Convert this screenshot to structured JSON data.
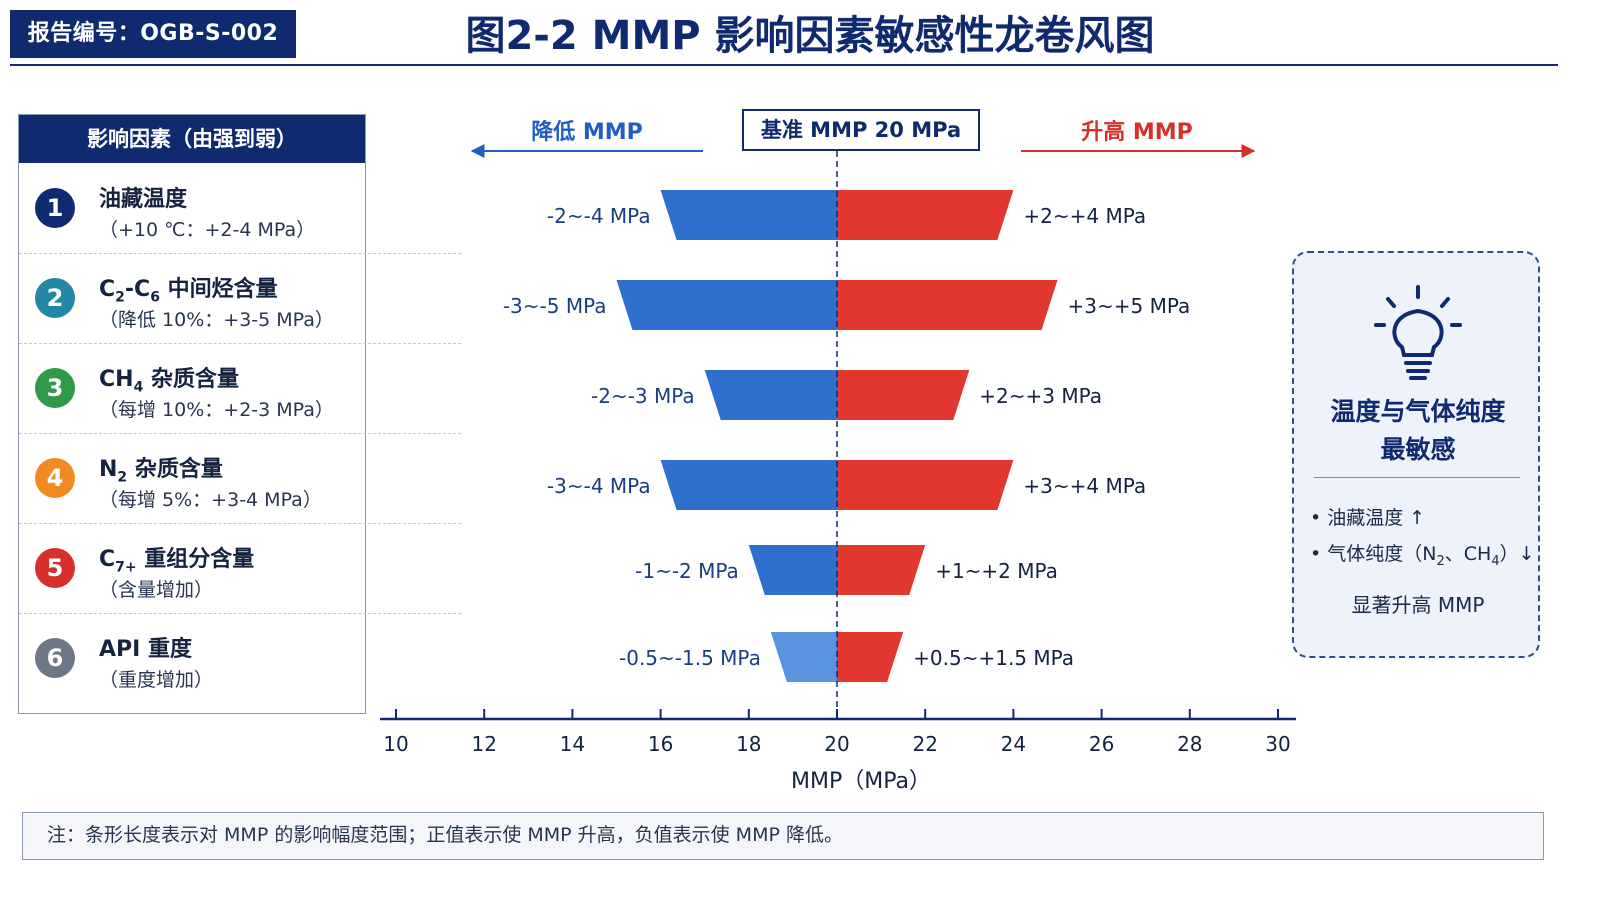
{
  "header": {
    "report_no": "报告编号：OGB-S-002",
    "title": "图2-2  MMP 影响因素敏感性龙卷风图"
  },
  "factors": {
    "header": "影响因素（由强到弱）",
    "items": [
      {
        "num": "1",
        "name": "油藏温度",
        "desc": "（+10 ℃：+2-4 MPa）",
        "color": "#0f2a6e"
      },
      {
        "num": "2",
        "name_main": "C",
        "name_sub1": "2",
        "name_mid": "-C",
        "name_sub2": "6",
        "name_tail": " 中间烃含量",
        "desc": "（降低 10%：+3-5 MPa）",
        "color": "#2288a6"
      },
      {
        "num": "3",
        "name_main": "CH",
        "name_sub1": "4",
        "name_tail": " 杂质含量",
        "desc": "（每增 10%：+2-3 MPa）",
        "color": "#2e9a4a"
      },
      {
        "num": "4",
        "name_main": "N",
        "name_sub1": "2",
        "name_tail": " 杂质含量",
        "desc": "（每增 5%：+3-4 MPa）",
        "color": "#f08a24"
      },
      {
        "num": "5",
        "name_main": "C",
        "name_sub1": "7+",
        "name_tail": " 重组分含量",
        "desc": "（含量增加）",
        "color": "#d6302a"
      },
      {
        "num": "6",
        "name": "API 重度",
        "desc": "（重度增加）",
        "color": "#6d7788"
      }
    ]
  },
  "chart_labels": {
    "decrease_label": "降低 MMP",
    "increase_label": "升高 MMP",
    "baseline_label": "基准 MMP 20 MPa"
  },
  "chart_data": {
    "type": "bar",
    "orientation": "horizontal-tornado",
    "baseline": 20,
    "xlabel": "MMP（MPa）",
    "xlim": [
      10,
      30
    ],
    "xticks": [
      10,
      12,
      14,
      16,
      18,
      20,
      22,
      24,
      26,
      28,
      30
    ],
    "categories": [
      "油藏温度",
      "C2-C6 中间烃含量",
      "CH4 杂质含量",
      "N2 杂质含量",
      "C7+ 重组分含量",
      "API 重度"
    ],
    "bars": [
      {
        "neg_min": -2,
        "neg_max": -4,
        "pos_min": 2,
        "pos_max": 4,
        "neg_label": "-2~-4 MPa",
        "pos_label": "+2~+4 MPa"
      },
      {
        "neg_min": -3,
        "neg_max": -5,
        "pos_min": 3,
        "pos_max": 5,
        "neg_label": "-3~-5 MPa",
        "pos_label": "+3~+5 MPa"
      },
      {
        "neg_min": -2,
        "neg_max": -3,
        "pos_min": 2,
        "pos_max": 3,
        "neg_label": "-2~-3 MPa",
        "pos_label": "+2~+3 MPa"
      },
      {
        "neg_min": -3,
        "neg_max": -4,
        "pos_min": 3,
        "pos_max": 4,
        "neg_label": "-3~-4 MPa",
        "pos_label": "+3~+4 MPa"
      },
      {
        "neg_min": -1,
        "neg_max": -2,
        "pos_min": 1,
        "pos_max": 2,
        "neg_label": "-1~-2 MPa",
        "pos_label": "+1~+2 MPa"
      },
      {
        "neg_min": -0.5,
        "neg_max": -1.5,
        "pos_min": 0.5,
        "pos_max": 1.5,
        "neg_label": "-0.5~-1.5 MPa",
        "pos_label": "+0.5~+1.5 MPa"
      }
    ],
    "colors": {
      "negative": "#2f6fce",
      "negative_light": "#5b93de",
      "positive": "#e2372f",
      "axis": "#0f2a6e"
    },
    "grid": false
  },
  "insight": {
    "icon": "lightbulb-icon",
    "title_line1": "温度与气体纯度",
    "title_line2": "最敏感",
    "bullet1": "油藏温度 ↑",
    "bullet2_pre": "气体纯度（N",
    "bullet2_sub1": "2",
    "bullet2_mid": "、CH",
    "bullet2_sub2": "4",
    "bullet2_post": "）↓",
    "conclusion": "显著升高 MMP"
  },
  "note": "注：条形长度表示对 MMP 的影响幅度范围；正值表示使 MMP 升高，负值表示使 MMP 降低。"
}
